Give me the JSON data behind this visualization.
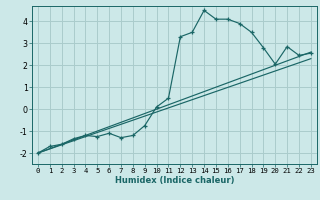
{
  "xlabel": "Humidex (Indice chaleur)",
  "bg_color": "#cce8e8",
  "grid_color": "#aacccc",
  "line_color": "#1a6666",
  "spine_color": "#1a6666",
  "xlim": [
    -0.5,
    23.5
  ],
  "ylim": [
    -2.5,
    4.7
  ],
  "xticks": [
    0,
    1,
    2,
    3,
    4,
    5,
    6,
    7,
    8,
    9,
    10,
    11,
    12,
    13,
    14,
    15,
    16,
    17,
    18,
    19,
    20,
    21,
    22,
    23
  ],
  "yticks": [
    -2,
    -1,
    0,
    1,
    2,
    3,
    4
  ],
  "curve_x": [
    0,
    1,
    2,
    3,
    4,
    5,
    6,
    7,
    8,
    9,
    10,
    11,
    12,
    13,
    14,
    15,
    16,
    17,
    18,
    19,
    20,
    21,
    22,
    23
  ],
  "curve_y": [
    -2.0,
    -1.7,
    -1.6,
    -1.35,
    -1.2,
    -1.25,
    -1.1,
    -1.3,
    -1.2,
    -0.75,
    0.1,
    0.5,
    3.3,
    3.5,
    4.5,
    4.1,
    4.1,
    3.9,
    3.5,
    2.8,
    2.05,
    2.85,
    2.45,
    2.55
  ],
  "line1_x": [
    0,
    23
  ],
  "line1_y": [
    -2.0,
    2.6
  ],
  "line2_x": [
    0,
    23
  ],
  "line2_y": [
    -2.0,
    2.3
  ],
  "xlabel_fontsize": 6.0,
  "tick_fontsize": 5.2
}
